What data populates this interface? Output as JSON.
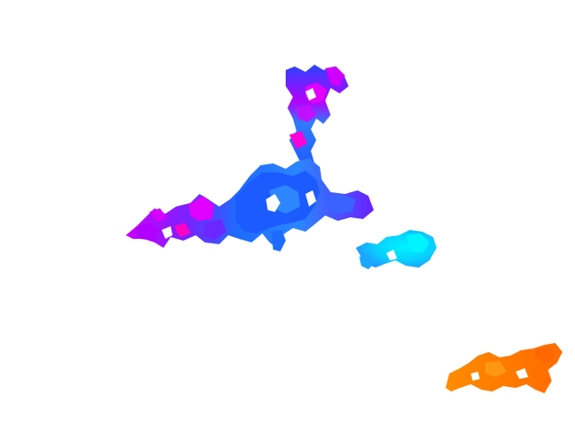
{
  "background_color": "#ffffff",
  "blobs": [
    {
      "name": "upper-cluster-blob",
      "colors": [
        "#1a4cff",
        "#2e6bff",
        "#4d3dff",
        "#7a1fff",
        "#b000ff",
        "#ff00e6",
        "#1e90ff"
      ]
    },
    {
      "name": "cyan-blob",
      "colors": [
        "#00d8ff",
        "#00f0ff",
        "#22bfff",
        "#0aa8ff"
      ]
    },
    {
      "name": "orange-blob",
      "colors": [
        "#ff8a00",
        "#ff7400",
        "#ff9a10",
        "#ff6a00"
      ]
    }
  ]
}
